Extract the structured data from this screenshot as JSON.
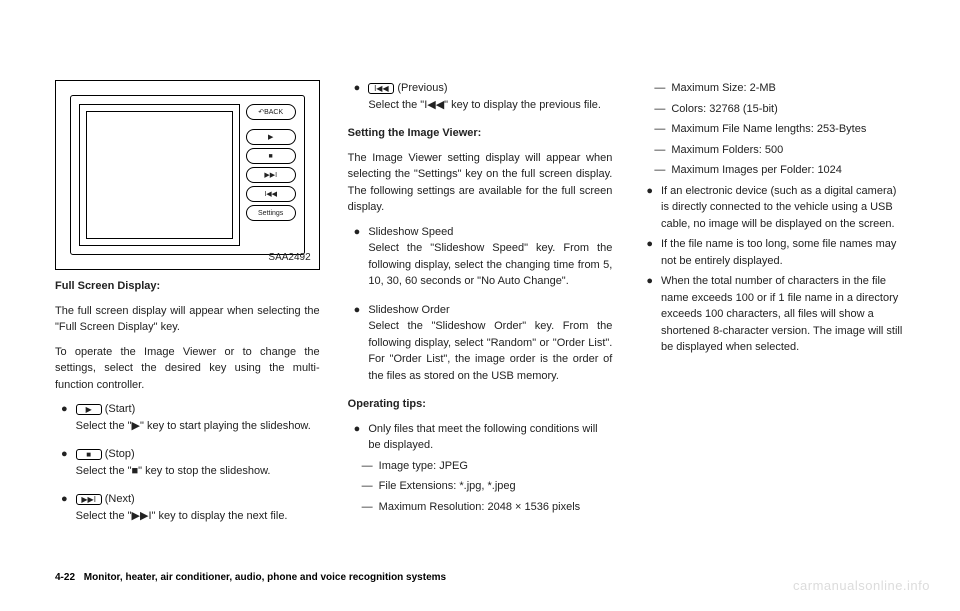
{
  "diagram": {
    "buttons": {
      "back": "↶BACK",
      "start": "▶",
      "stop": "■",
      "next": "▶▶I",
      "prev": "I◀◀",
      "settings": "Settings"
    },
    "caption": "SAA2492"
  },
  "col1": {
    "heading": "Full Screen Display:",
    "p1": "The full screen display will appear when selecting the \"Full Screen Display\" key.",
    "p2": "To operate the Image Viewer or to change the settings, select the desired key using the multi-function controller.",
    "b1_label": "(Start)",
    "b1_text": "Select the \"▶\" key to start playing the slideshow.",
    "b2_label": "(Stop)",
    "b2_text": "Select the \"■\" key to stop the slideshow.",
    "b3_label": "(Next)",
    "b3_text": "Select the \"▶▶I\" key to display the next file."
  },
  "col2": {
    "top_label": "(Previous)",
    "top_text": "Select the \"I◀◀\" key to display the previous file.",
    "h_setting": "Setting the Image Viewer:",
    "p_setting": "The Image Viewer setting display will appear when selecting the \"Settings\" key on the full screen display. The following settings are available for the full screen display.",
    "b1_head": "Slideshow Speed",
    "b1_text": "Select the \"Slideshow Speed\" key. From the following display, select the changing time from 5, 10, 30, 60 seconds or \"No Auto Change\".",
    "b2_head": "Slideshow Order",
    "b2_text": "Select the \"Slideshow Order\" key. From the following display, select \"Random\" or \"Order List\". For \"Order List\", the image order is the order of the files as stored on the USB memory.",
    "h_tips": "Operating tips:",
    "tip1": "Only files that meet the following conditions will be displayed.",
    "s1": "Image type: JPEG",
    "s2": "File Extensions: *.jpg, *.jpeg",
    "s3": "Maximum Resolution: 2048 × 1536 pixels"
  },
  "col3": {
    "s1": "Maximum Size: 2-MB",
    "s2": "Colors: 32768 (15-bit)",
    "s3": "Maximum File Name lengths: 253-Bytes",
    "s4": "Maximum Folders: 500",
    "s5": "Maximum Images per Folder: 1024",
    "b1": "If an electronic device (such as a digital camera) is directly connected to the vehicle using a USB cable, no image will be displayed on the screen.",
    "b2": "If the file name is too long, some file names may not be entirely displayed.",
    "b3": "When the total number of characters in the file name exceeds 100 or if 1 file name in a directory exceeds 100 characters, all files will show a shortened 8-character version. The image will still be displayed when selected."
  },
  "footer": {
    "page": "4-22",
    "section": "Monitor, heater, air conditioner, audio, phone and voice recognition systems"
  },
  "watermark": "carmanualsonline.info"
}
